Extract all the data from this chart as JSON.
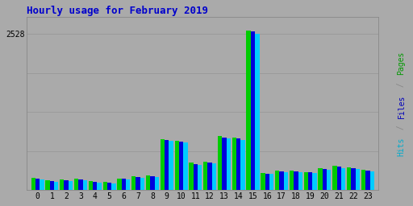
{
  "title": "Hourly usage for February 2019",
  "hours": [
    0,
    1,
    2,
    3,
    4,
    5,
    6,
    7,
    8,
    9,
    10,
    11,
    12,
    13,
    14,
    15,
    16,
    17,
    18,
    19,
    20,
    21,
    22,
    23
  ],
  "pages": [
    200,
    160,
    170,
    180,
    145,
    130,
    190,
    220,
    240,
    820,
    800,
    440,
    460,
    870,
    850,
    2580,
    280,
    310,
    310,
    295,
    360,
    390,
    370,
    330
  ],
  "files": [
    185,
    150,
    160,
    170,
    135,
    120,
    180,
    210,
    230,
    810,
    785,
    425,
    445,
    855,
    830,
    2565,
    270,
    300,
    300,
    285,
    345,
    375,
    355,
    318
  ],
  "hits": [
    170,
    140,
    150,
    160,
    125,
    110,
    168,
    198,
    218,
    798,
    768,
    408,
    428,
    840,
    808,
    2528,
    258,
    288,
    288,
    272,
    330,
    360,
    340,
    305
  ],
  "color_pages": "#00cc00",
  "color_files": "#0000dd",
  "color_hits": "#00ccff",
  "background_color": "#aaaaaa",
  "title_color": "#0000cc",
  "ylabel_pages_color": "#009900",
  "ylabel_slash_color": "#888888",
  "ylabel_files_color": "#0000bb",
  "ylabel_hits_color": "#00aacc",
  "ylim_max": 2800,
  "ytick_val": 2528,
  "bar_width": 0.3
}
